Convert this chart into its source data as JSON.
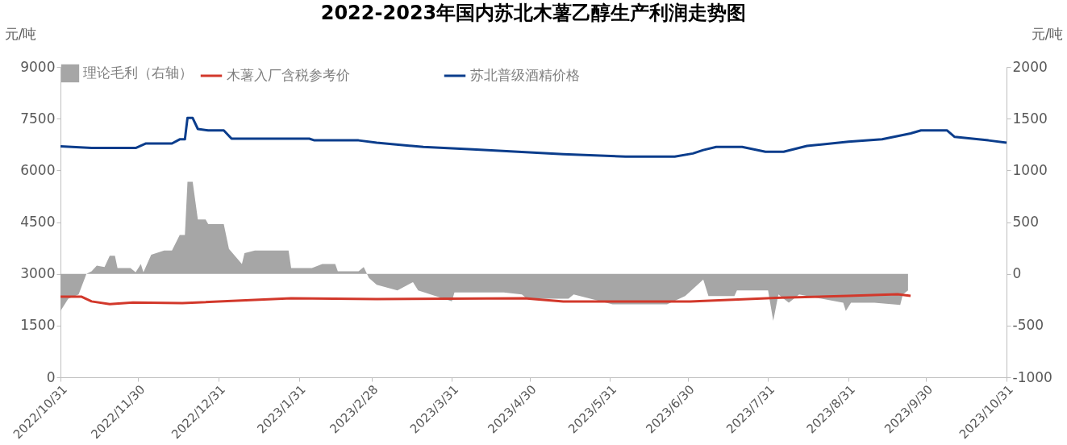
{
  "chart_data": {
    "type": "line",
    "title": "2022-2023年国内苏北木薯乙醇生产利润走势图",
    "ylabel": "元/吨",
    "y2label": "元/吨",
    "xlim": [
      "2022-10-31",
      "2023-10-31"
    ],
    "xticks": [
      {
        "value": "2022-10-31",
        "label": "2022/10/31"
      },
      {
        "value": "2022-11-30",
        "label": "2022/11/30"
      },
      {
        "value": "2022-12-31",
        "label": "2022/12/31"
      },
      {
        "value": "2023-01-31",
        "label": "2023/1/31"
      },
      {
        "value": "2023-02-28",
        "label": "2023/2/28"
      },
      {
        "value": "2023-03-31",
        "label": "2023/3/31"
      },
      {
        "value": "2023-04-30",
        "label": "2023/4/30"
      },
      {
        "value": "2023-05-31",
        "label": "2023/5/31"
      },
      {
        "value": "2023-06-30",
        "label": "2023/6/30"
      },
      {
        "value": "2023-07-31",
        "label": "2023/7/31"
      },
      {
        "value": "2023-08-31",
        "label": "2023/8/31"
      },
      {
        "value": "2023-09-30",
        "label": "2023/9/30"
      },
      {
        "value": "2023-10-31",
        "label": "2023/10/31"
      }
    ],
    "ylim": [
      0,
      9000
    ],
    "yticks": [
      0,
      1500,
      3000,
      4500,
      6000,
      7500,
      9000
    ],
    "y2lim": [
      -1000,
      2000
    ],
    "y2ticks": [
      -1000,
      -500,
      0,
      500,
      1000,
      1500,
      2000
    ],
    "legend": "top",
    "grid": false,
    "line_style": "solid",
    "marker": "none",
    "series": [
      {
        "name": "理论毛利（右轴）",
        "type": "area",
        "axis": "y2",
        "color": "#a6a6a6",
        "x": [
          "2022-10-31",
          "2022-11-03",
          "2022-11-07",
          "2022-11-10",
          "2022-11-12",
          "2022-11-14",
          "2022-11-17",
          "2022-11-19",
          "2022-11-21",
          "2022-11-22",
          "2022-11-27",
          "2022-11-29",
          "2022-12-01",
          "2022-12-02",
          "2022-12-05",
          "2022-12-10",
          "2022-12-13",
          "2022-12-16",
          "2022-12-18",
          "2022-12-19",
          "2022-12-21",
          "2022-12-23",
          "2022-12-26",
          "2022-12-27",
          "2023-01-02",
          "2023-01-04",
          "2023-01-09",
          "2023-01-10",
          "2023-01-14",
          "2023-01-27",
          "2023-01-28",
          "2023-02-05",
          "2023-02-09",
          "2023-02-14",
          "2023-02-15",
          "2023-02-23",
          "2023-02-25",
          "2023-02-27",
          "2023-03-02",
          "2023-03-10",
          "2023-03-16",
          "2023-03-18",
          "2023-03-31",
          "2023-04-01",
          "2023-04-20",
          "2023-04-27",
          "2023-04-29",
          "2023-05-15",
          "2023-05-17",
          "2023-06-01",
          "2023-06-22",
          "2023-06-29",
          "2023-07-06",
          "2023-07-08",
          "2023-07-18",
          "2023-07-19",
          "2023-07-31",
          "2023-08-02",
          "2023-08-04",
          "2023-08-08",
          "2023-08-12",
          "2023-08-29",
          "2023-08-30",
          "2023-09-01",
          "2023-09-10",
          "2023-09-20",
          "2023-09-21",
          "2023-09-23"
        ],
        "values": [
          -360,
          -240,
          -200,
          0,
          25,
          80,
          65,
          175,
          175,
          55,
          55,
          15,
          95,
          15,
          185,
          225,
          225,
          375,
          375,
          890,
          890,
          525,
          525,
          480,
          480,
          240,
          95,
          200,
          225,
          225,
          55,
          55,
          95,
          95,
          25,
          25,
          65,
          -40,
          -105,
          -160,
          -80,
          -160,
          -265,
          -180,
          -180,
          -200,
          -240,
          -240,
          -200,
          -295,
          -295,
          -215,
          -55,
          -215,
          -215,
          -160,
          -160,
          -455,
          -200,
          -280,
          -200,
          -280,
          -360,
          -280,
          -280,
          -300,
          -200,
          -160
        ]
      },
      {
        "name": "木薯入厂含税参考价",
        "color": "#d2382b",
        "x": [
          "2022-10-31",
          "2022-11-08",
          "2022-11-12",
          "2022-11-19",
          "2022-11-28",
          "2022-12-17",
          "2023-01-28",
          "2023-03-02",
          "2023-04-28",
          "2023-05-13",
          "2023-07-01",
          "2023-08-05",
          "2023-08-31",
          "2023-09-19",
          "2023-09-24"
        ],
        "values": [
          2340,
          2340,
          2200,
          2120,
          2170,
          2150,
          2290,
          2270,
          2290,
          2200,
          2200,
          2310,
          2360,
          2410,
          2360
        ]
      },
      {
        "name": "苏北普级酒精价格",
        "color": "#0b3d8c",
        "x": [
          "2022-10-31",
          "2022-11-12",
          "2022-11-29",
          "2022-12-03",
          "2022-12-13",
          "2022-12-16",
          "2022-12-18",
          "2022-12-19",
          "2022-12-21",
          "2022-12-23",
          "2022-12-27",
          "2023-01-02",
          "2023-01-05",
          "2023-02-04",
          "2023-02-06",
          "2023-02-23",
          "2023-03-02",
          "2023-03-20",
          "2023-04-08",
          "2023-05-13",
          "2023-06-06",
          "2023-06-25",
          "2023-07-02",
          "2023-07-06",
          "2023-07-11",
          "2023-07-21",
          "2023-07-30",
          "2023-08-06",
          "2023-08-15",
          "2023-08-31",
          "2023-09-13",
          "2023-09-24",
          "2023-09-28",
          "2023-10-08",
          "2023-10-11",
          "2023-10-24",
          "2023-10-31"
        ],
        "values": [
          6700,
          6650,
          6650,
          6780,
          6780,
          6900,
          6900,
          7520,
          7520,
          7200,
          7160,
          7160,
          6920,
          6920,
          6870,
          6870,
          6800,
          6680,
          6610,
          6470,
          6400,
          6400,
          6490,
          6590,
          6680,
          6680,
          6540,
          6540,
          6710,
          6830,
          6900,
          7070,
          7160,
          7160,
          6970,
          6870,
          6800
        ]
      }
    ]
  }
}
